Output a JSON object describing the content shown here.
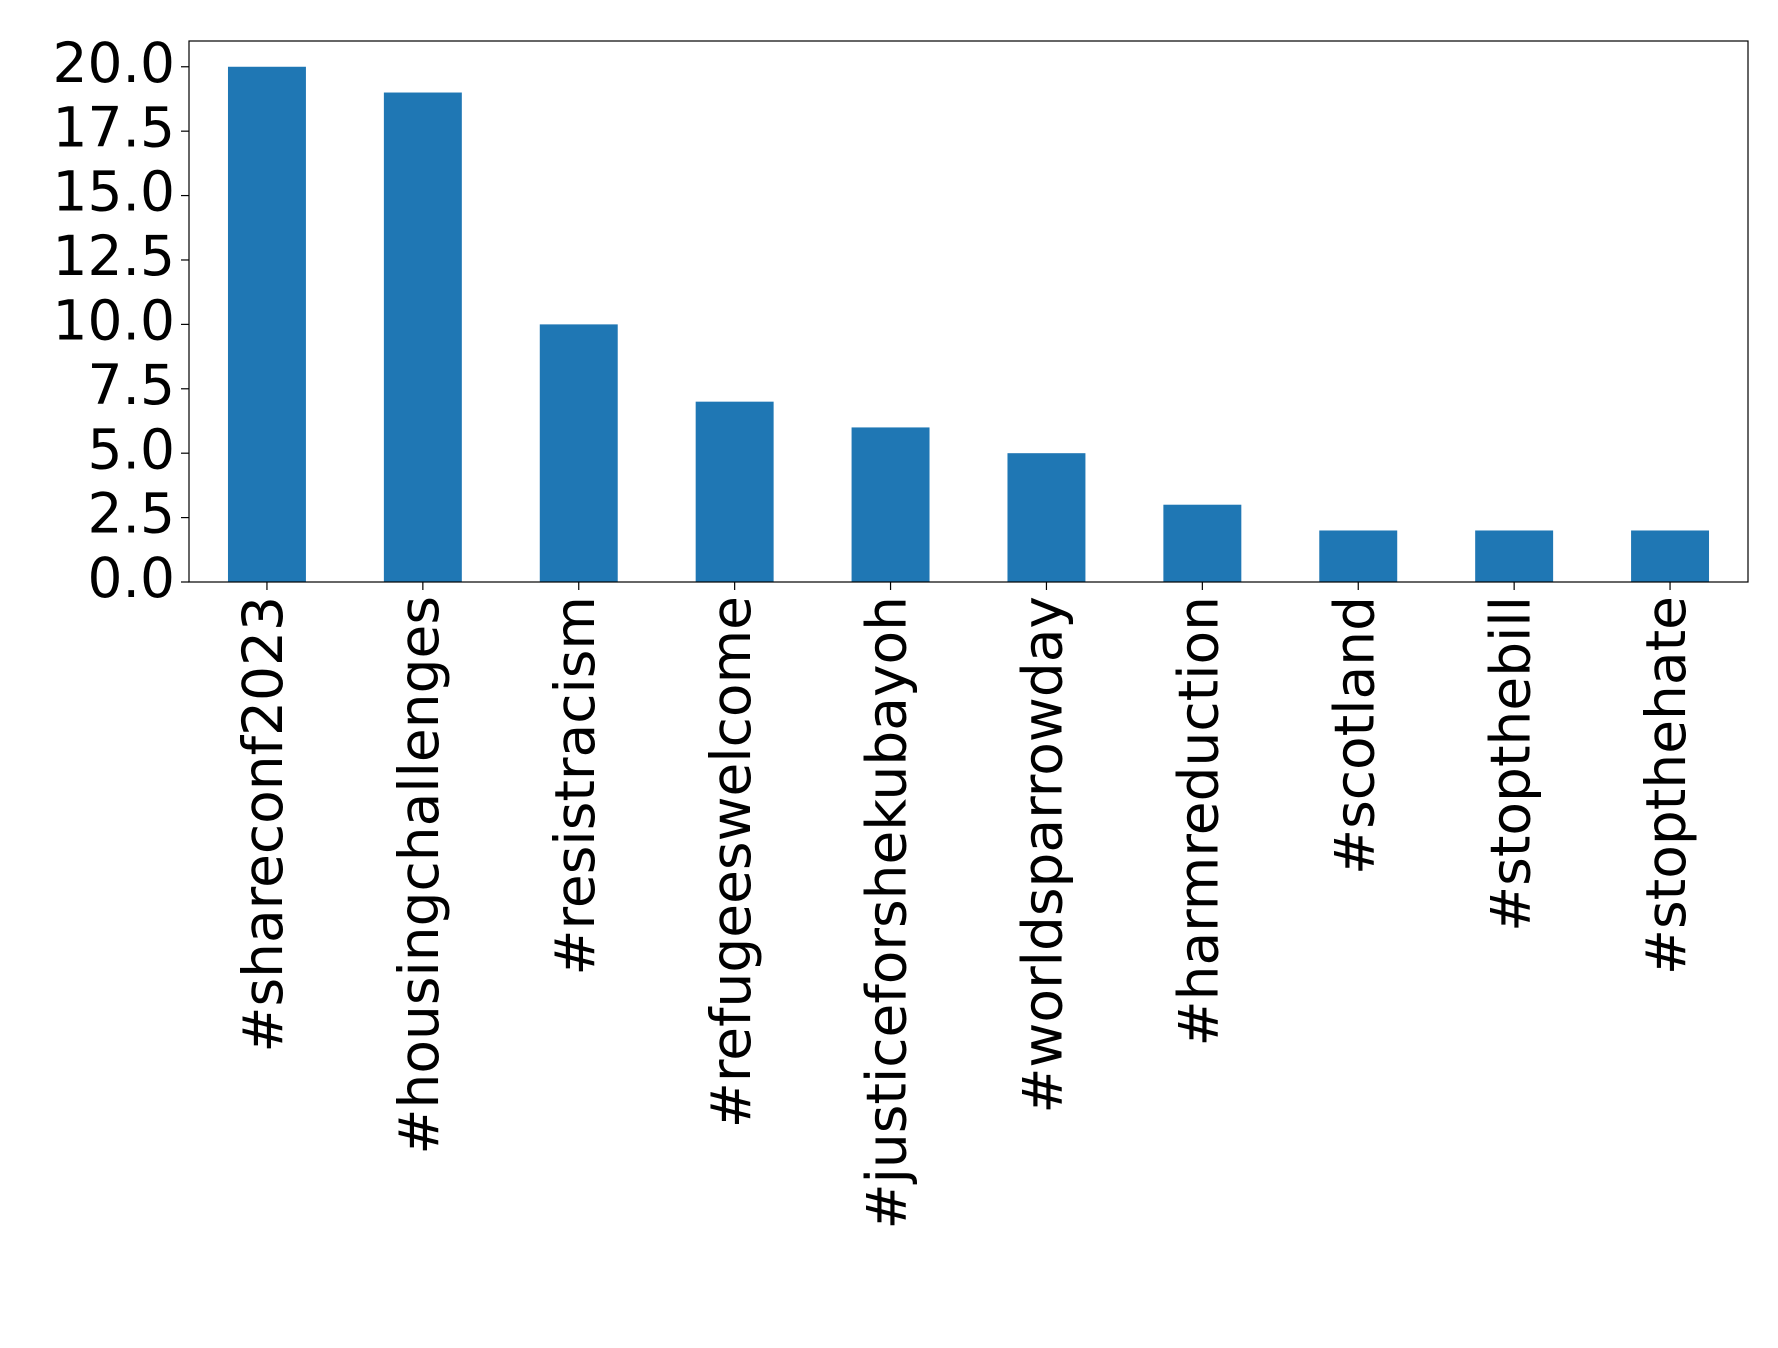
{
  "chart_data": {
    "type": "bar",
    "categories": [
      "#shareconf2023",
      "#housingchallenges",
      "#resistracism",
      "#refugeeswelcome",
      "#justiceforshekubayoh",
      "#worldsparrowday",
      "#harmreduction",
      "#scotland",
      "#stopthebill",
      "#stopthehate"
    ],
    "values": [
      20,
      19,
      10,
      7,
      6,
      5,
      3,
      2,
      2,
      2
    ],
    "color": "#1f77b4",
    "ylim": [
      0,
      21
    ],
    "yticks": [
      {
        "value": 0,
        "label": "0.0"
      },
      2.5,
      {
        "value": 5,
        "label": "5.0"
      },
      7.5,
      {
        "value": 10,
        "label": "10.0"
      },
      12.5,
      {
        "value": 15,
        "label": "15.0"
      },
      17.5,
      {
        "value": 20,
        "label": "20.0"
      }
    ],
    "grid": false
  }
}
